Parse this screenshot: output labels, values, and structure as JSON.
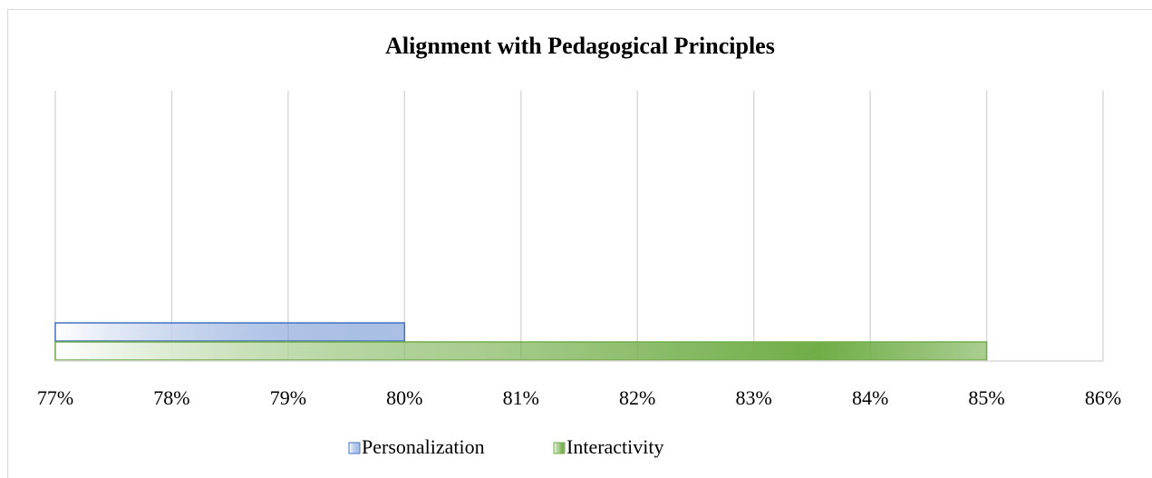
{
  "chart_data": {
    "type": "hbar",
    "title": "Alignment with Pedagogical Principles",
    "categories": [
      null
    ],
    "series": [
      {
        "name": "Personalization",
        "color": "#4472c4",
        "values": [
          80
        ]
      },
      {
        "name": "Interactivity",
        "color": "#70ad47",
        "values": [
          85
        ]
      }
    ],
    "xlim": [
      77,
      86
    ],
    "xticks": [
      {
        "value": 77,
        "label": "77%"
      },
      {
        "value": 78,
        "label": "78%"
      },
      {
        "value": 79,
        "label": "79%"
      },
      {
        "value": 80,
        "label": "80%"
      },
      {
        "value": 81,
        "label": "81%"
      },
      {
        "value": 82,
        "label": "82%"
      },
      {
        "value": 83,
        "label": "83%"
      },
      {
        "value": 84,
        "label": "84%"
      },
      {
        "value": 85,
        "label": "85%"
      },
      {
        "value": 86,
        "label": "86%"
      }
    ],
    "grid": true,
    "legend": "bottom"
  }
}
